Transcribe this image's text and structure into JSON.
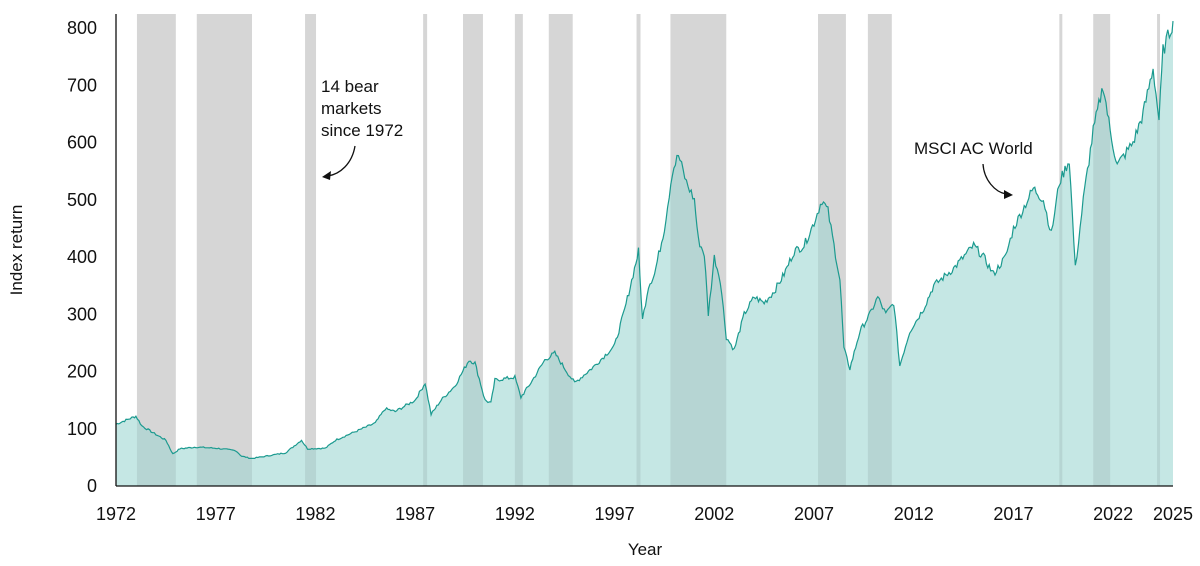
{
  "chart_data": {
    "type": "area",
    "title": "",
    "xlabel": "Year",
    "ylabel": "Index return",
    "xlim": [
      1972,
      2025
    ],
    "ylim": [
      0,
      825
    ],
    "grid": false,
    "x_ticks": [
      1972,
      1977,
      1982,
      1987,
      1992,
      1997,
      2002,
      2007,
      2012,
      2017,
      2022,
      2025
    ],
    "y_ticks": [
      0,
      100,
      200,
      300,
      400,
      500,
      600,
      700,
      800
    ],
    "colors": {
      "line": "#1b9a8f",
      "fill": "#c5e7e4",
      "bear_band": "#000000"
    },
    "series": [
      {
        "name": "MSCI AC World",
        "points": [
          [
            1972.0,
            108
          ],
          [
            1972.5,
            115
          ],
          [
            1973.0,
            122
          ],
          [
            1973.3,
            105
          ],
          [
            1974.0,
            90
          ],
          [
            1974.5,
            80
          ],
          [
            1974.85,
            56
          ],
          [
            1975.2,
            65
          ],
          [
            1976.0,
            68
          ],
          [
            1977.0,
            66
          ],
          [
            1978.0,
            62
          ],
          [
            1978.3,
            52
          ],
          [
            1978.8,
            48
          ],
          [
            1979.5,
            52
          ],
          [
            1980.5,
            58
          ],
          [
            1981.3,
            80
          ],
          [
            1981.6,
            65
          ],
          [
            1982.5,
            66
          ],
          [
            1983.0,
            80
          ],
          [
            1984.0,
            95
          ],
          [
            1985.0,
            110
          ],
          [
            1985.5,
            135
          ],
          [
            1986.0,
            130
          ],
          [
            1987.0,
            150
          ],
          [
            1987.5,
            180
          ],
          [
            1987.8,
            125
          ],
          [
            1988.3,
            150
          ],
          [
            1989.0,
            175
          ],
          [
            1989.7,
            220
          ],
          [
            1990.0,
            215
          ],
          [
            1990.5,
            150
          ],
          [
            1990.8,
            145
          ],
          [
            1991.0,
            185
          ],
          [
            1992.0,
            190
          ],
          [
            1992.3,
            155
          ],
          [
            1992.8,
            180
          ],
          [
            1993.5,
            220
          ],
          [
            1994.0,
            232
          ],
          [
            1994.6,
            200
          ],
          [
            1995.0,
            180
          ],
          [
            1996.0,
            210
          ],
          [
            1997.0,
            245
          ],
          [
            1997.5,
            307
          ],
          [
            1998.0,
            380
          ],
          [
            1998.2,
            410
          ],
          [
            1998.4,
            290
          ],
          [
            1998.7,
            350
          ],
          [
            1999.0,
            370
          ],
          [
            1999.5,
            450
          ],
          [
            1999.9,
            550
          ],
          [
            2000.2,
            578
          ],
          [
            2000.6,
            530
          ],
          [
            2001.0,
            500
          ],
          [
            2001.2,
            430
          ],
          [
            2001.5,
            405
          ],
          [
            2001.7,
            300
          ],
          [
            2002.0,
            400
          ],
          [
            2002.3,
            360
          ],
          [
            2002.6,
            260
          ],
          [
            2003.0,
            238
          ],
          [
            2003.5,
            300
          ],
          [
            2004.0,
            330
          ],
          [
            2004.5,
            320
          ],
          [
            2005.0,
            340
          ],
          [
            2005.5,
            370
          ],
          [
            2006.0,
            410
          ],
          [
            2006.5,
            420
          ],
          [
            2007.0,
            460
          ],
          [
            2007.4,
            500
          ],
          [
            2007.7,
            480
          ],
          [
            2008.0,
            420
          ],
          [
            2008.3,
            360
          ],
          [
            2008.5,
            240
          ],
          [
            2008.8,
            205
          ],
          [
            2009.3,
            270
          ],
          [
            2009.8,
            300
          ],
          [
            2010.2,
            330
          ],
          [
            2010.6,
            300
          ],
          [
            2011.0,
            320
          ],
          [
            2011.3,
            210
          ],
          [
            2011.8,
            270
          ],
          [
            2012.5,
            310
          ],
          [
            2013.0,
            350
          ],
          [
            2014.0,
            380
          ],
          [
            2015.0,
            420
          ],
          [
            2015.5,
            400
          ],
          [
            2016.0,
            370
          ],
          [
            2016.6,
            400
          ],
          [
            2017.0,
            450
          ],
          [
            2018.0,
            520
          ],
          [
            2018.5,
            500
          ],
          [
            2018.9,
            440
          ],
          [
            2019.3,
            530
          ],
          [
            2019.8,
            570
          ],
          [
            2020.1,
            380
          ],
          [
            2020.5,
            500
          ],
          [
            2021.0,
            620
          ],
          [
            2021.5,
            700
          ],
          [
            2021.85,
            620
          ],
          [
            2022.2,
            560
          ],
          [
            2022.6,
            580
          ],
          [
            2023.0,
            600
          ],
          [
            2023.5,
            650
          ],
          [
            2024.0,
            730
          ],
          [
            2024.3,
            640
          ],
          [
            2024.5,
            760
          ],
          [
            2024.9,
            800
          ],
          [
            2025.0,
            812
          ]
        ]
      }
    ],
    "bear_markets": [
      [
        1973.05,
        1975.0
      ],
      [
        1976.05,
        1978.82
      ],
      [
        1981.48,
        1982.03
      ],
      [
        1987.4,
        1987.6
      ],
      [
        1989.4,
        1990.4
      ],
      [
        1992.0,
        1992.4
      ],
      [
        1993.7,
        1994.9
      ],
      [
        1998.1,
        1998.3
      ],
      [
        1999.8,
        2002.6
      ],
      [
        2007.2,
        2008.6
      ],
      [
        2009.7,
        2010.9
      ],
      [
        2019.3,
        2019.4
      ],
      [
        2021.0,
        2021.85
      ],
      [
        2024.2,
        2024.35
      ]
    ],
    "annotations": {
      "bear": [
        "14 bear",
        "markets",
        "since 1972"
      ],
      "series_label": "MSCI AC World"
    }
  }
}
